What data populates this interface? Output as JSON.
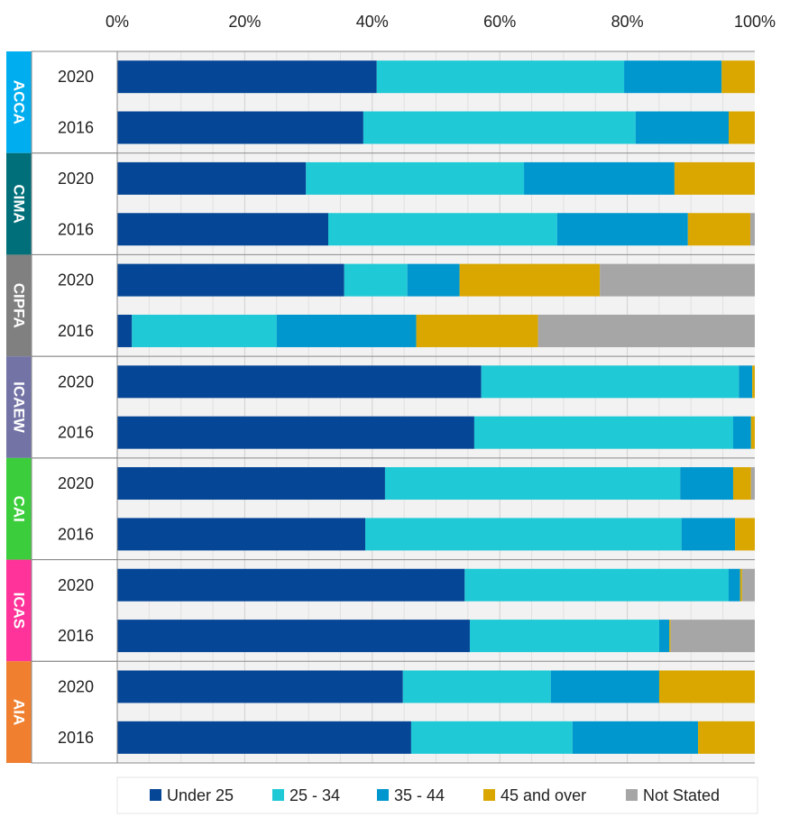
{
  "chart_data": {
    "type": "bar",
    "orientation": "horizontal",
    "stacked": true,
    "percent": true,
    "xlim": [
      0,
      100
    ],
    "x_ticks": [
      "0%",
      "20%",
      "40%",
      "60%",
      "80%",
      "100%"
    ],
    "grid": true,
    "legend_position": "bottom",
    "series": [
      {
        "name": "Under 25",
        "color": "#064696"
      },
      {
        "name": "25 - 34",
        "color": "#1fc9d6"
      },
      {
        "name": "35 - 44",
        "color": "#0097ce"
      },
      {
        "name": "45 and over",
        "color": "#d9a700"
      },
      {
        "name": "Not Stated",
        "color": "#a6a6a6"
      }
    ],
    "groups": [
      {
        "name": "ACCA",
        "color": "#00aeef",
        "rows": [
          {
            "year": "2020",
            "values": [
              40.7,
              38.8,
              15.3,
              5.2,
              0
            ]
          },
          {
            "year": "2016",
            "values": [
              38.6,
              42.7,
              14.6,
              4.1,
              0
            ]
          }
        ]
      },
      {
        "name": "CIMA",
        "color": "#006f7a",
        "rows": [
          {
            "year": "2020",
            "values": [
              29.6,
              34.2,
              23.6,
              12.6,
              0
            ]
          },
          {
            "year": "2016",
            "values": [
              33.1,
              35.9,
              20.5,
              9.8,
              0.7
            ]
          }
        ]
      },
      {
        "name": "CIPFA",
        "color": "#808080",
        "rows": [
          {
            "year": "2020",
            "values": [
              35.6,
              9.9,
              8.2,
              22.0,
              24.3
            ]
          },
          {
            "year": "2016",
            "values": [
              2.3,
              22.7,
              21.9,
              19.1,
              34.0
            ]
          }
        ]
      },
      {
        "name": "ICAEW",
        "color": "#7373a6",
        "rows": [
          {
            "year": "2020",
            "values": [
              57.1,
              40.4,
              2.1,
              0.4,
              0
            ]
          },
          {
            "year": "2016",
            "values": [
              56.0,
              40.6,
              2.8,
              0.6,
              0
            ]
          }
        ]
      },
      {
        "name": "CAI",
        "color": "#3ccd3c",
        "rows": [
          {
            "year": "2020",
            "values": [
              42.0,
              46.3,
              8.3,
              2.8,
              0.6
            ]
          },
          {
            "year": "2016",
            "values": [
              38.9,
              49.6,
              8.4,
              3.1,
              0
            ]
          }
        ]
      },
      {
        "name": "ICAS",
        "color": "#ff3399",
        "rows": [
          {
            "year": "2020",
            "values": [
              54.5,
              41.4,
              1.8,
              0.3,
              2.0
            ]
          },
          {
            "year": "2016",
            "values": [
              55.3,
              29.7,
              1.6,
              0.2,
              13.2
            ]
          }
        ]
      },
      {
        "name": "AIA",
        "color": "#f08030",
        "rows": [
          {
            "year": "2020",
            "values": [
              44.8,
              23.2,
              17.0,
              15.0,
              0
            ]
          },
          {
            "year": "2016",
            "values": [
              46.1,
              25.3,
              19.7,
              8.9,
              0
            ]
          }
        ]
      }
    ]
  }
}
